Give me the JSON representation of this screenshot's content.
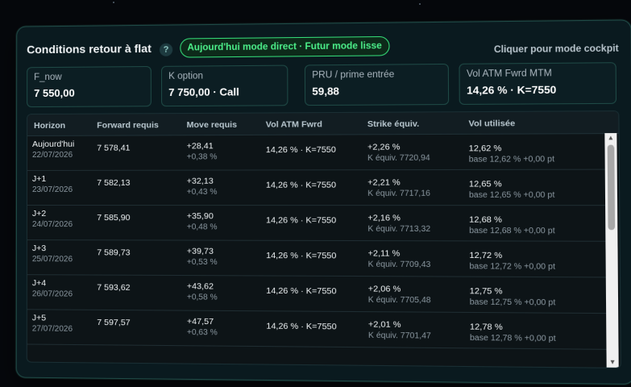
{
  "header": {
    "title": "Conditions retour à flat",
    "help_label": "?",
    "mode_label": "Aujourd'hui mode direct · Futur mode lisse",
    "cockpit_link": "Cliquer pour mode cockpit"
  },
  "cards": [
    {
      "label": "F_now",
      "value": "7 550,00"
    },
    {
      "label": "K option",
      "value": "7 750,00 · Call"
    },
    {
      "label": "PRU / prime entrée",
      "value": "59,88"
    },
    {
      "label": "Vol ATM Fwrd MTM",
      "value": "14,26 % · K=7550"
    }
  ],
  "table": {
    "headers": [
      "Horizon",
      "Forward requis",
      "Move requis",
      "Vol ATM Fwrd",
      "Strike équiv.",
      "Vol utilisée"
    ],
    "rows": [
      {
        "horizon": "Aujourd'hui",
        "date": "22/07/2026",
        "forward": "7 578,41",
        "move": "+28,41",
        "move_pct": "+0,38 %",
        "vol_atm": "14,26 % · K=7550",
        "strike": "+2,26 %",
        "strike_k": "K équiv. 7720,94",
        "vol_used": "12,62 %",
        "vol_base": "base 12,62 % +0,00 pt"
      },
      {
        "horizon": "J+1",
        "date": "23/07/2026",
        "forward": "7 582,13",
        "move": "+32,13",
        "move_pct": "+0,43 %",
        "vol_atm": "14,26 % · K=7550",
        "strike": "+2,21 %",
        "strike_k": "K équiv. 7717,16",
        "vol_used": "12,65 %",
        "vol_base": "base 12,65 % +0,00 pt"
      },
      {
        "horizon": "J+2",
        "date": "24/07/2026",
        "forward": "7 585,90",
        "move": "+35,90",
        "move_pct": "+0,48 %",
        "vol_atm": "14,26 % · K=7550",
        "strike": "+2,16 %",
        "strike_k": "K équiv. 7713,32",
        "vol_used": "12,68 %",
        "vol_base": "base 12,68 % +0,00 pt"
      },
      {
        "horizon": "J+3",
        "date": "25/07/2026",
        "forward": "7 589,73",
        "move": "+39,73",
        "move_pct": "+0,53 %",
        "vol_atm": "14,26 % · K=7550",
        "strike": "+2,11 %",
        "strike_k": "K équiv. 7709,43",
        "vol_used": "12,72 %",
        "vol_base": "base 12,72 % +0,00 pt"
      },
      {
        "horizon": "J+4",
        "date": "26/07/2026",
        "forward": "7 593,62",
        "move": "+43,62",
        "move_pct": "+0,58 %",
        "vol_atm": "14,26 % · K=7550",
        "strike": "+2,06 %",
        "strike_k": "K équiv. 7705,48",
        "vol_used": "12,75 %",
        "vol_base": "base 12,75 % +0,00 pt"
      },
      {
        "horizon": "J+5",
        "date": "27/07/2026",
        "forward": "7 597,57",
        "move": "+47,57",
        "move_pct": "+0,63 %",
        "vol_atm": "14,26 % · K=7550",
        "strike": "+2,01 %",
        "strike_k": "K équiv. 7701,47",
        "vol_used": "12,78 %",
        "vol_base": "base 12,78 % +0,00 pt"
      }
    ]
  }
}
